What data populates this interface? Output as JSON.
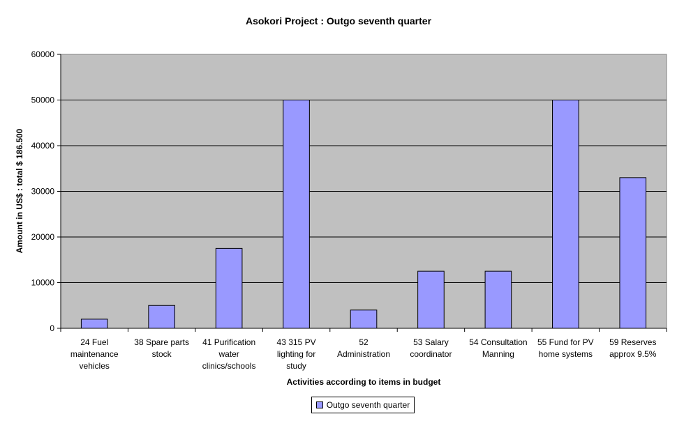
{
  "chart_data": {
    "type": "bar",
    "title": "Asokori Project : Outgo seventh quarter",
    "xlabel": "Activities according to items in budget",
    "ylabel": "Amount in US$ : total $ 186.500",
    "ylim": [
      0,
      60000
    ],
    "yticks": [
      0,
      10000,
      20000,
      30000,
      40000,
      50000,
      60000
    ],
    "grid": true,
    "legend_position": "bottom",
    "categories": [
      [
        "24 Fuel",
        "maintenance",
        "vehicles"
      ],
      [
        "38 Spare parts",
        "stock"
      ],
      [
        "41 Purification",
        "water",
        "clinics/schools"
      ],
      [
        "43 315 PV",
        "lighting for",
        "study"
      ],
      [
        "52",
        "Administration"
      ],
      [
        "53 Salary",
        "coordinator"
      ],
      [
        "54 Consultation",
        "Manning"
      ],
      [
        "55 Fund for PV",
        "home systems"
      ],
      [
        "59 Reserves",
        "approx 9.5%"
      ]
    ],
    "series": [
      {
        "name": "Outgo seventh quarter",
        "color": "#9999ff",
        "values": [
          2000,
          5000,
          17500,
          50000,
          4000,
          12500,
          12500,
          50000,
          33000
        ]
      }
    ],
    "plot_background": "#c0c0c0"
  }
}
